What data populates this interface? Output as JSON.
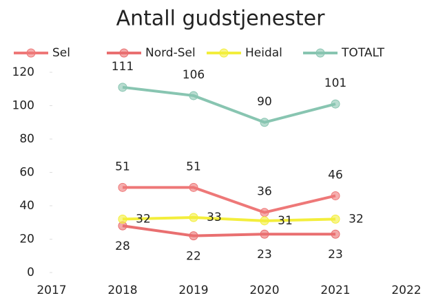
{
  "chart_data": {
    "type": "line",
    "title": "Antall gudstjenester",
    "categories": [
      "2017",
      "2018",
      "2019",
      "2020",
      "2021",
      "2022"
    ],
    "series": [
      {
        "name": "Sel",
        "color": "#ee7878",
        "values": [
          null,
          51,
          51,
          36,
          46,
          null
        ]
      },
      {
        "name": "Nord-Sel",
        "color": "#e96f70",
        "values": [
          null,
          28,
          22,
          23,
          23,
          null
        ]
      },
      {
        "name": "Heidal",
        "color": "#f3ee3c",
        "values": [
          null,
          32,
          33,
          31,
          32,
          null
        ]
      },
      {
        "name": "TOTALT",
        "color": "#88c5b1",
        "values": [
          null,
          111,
          106,
          90,
          101,
          null
        ]
      }
    ],
    "ylim": [
      0,
      120
    ],
    "yticks": [
      0,
      20,
      40,
      60,
      80,
      100,
      120
    ],
    "legend": "top"
  }
}
